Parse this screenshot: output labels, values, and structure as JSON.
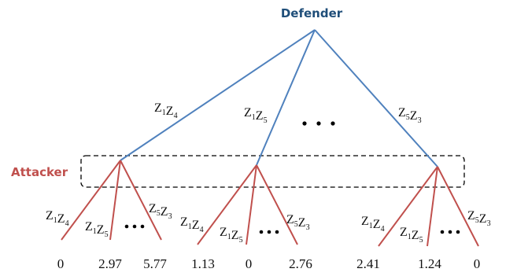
{
  "colors": {
    "defender": "#1F4E79",
    "defender_edges": "#4F81BD",
    "attacker": "#C0504D",
    "attacker_edges": "#C0504D",
    "info_set_border": "#000000"
  },
  "defender": {
    "label": "Defender"
  },
  "attacker": {
    "label": "Attacker"
  },
  "defender_branches": [
    {
      "label": "Z1Z4",
      "parts": [
        [
          "Z",
          "1"
        ],
        [
          "Z",
          "4"
        ]
      ]
    },
    {
      "label": "Z1Z5",
      "parts": [
        [
          "Z",
          "1"
        ],
        [
          "Z",
          "5"
        ]
      ]
    },
    {
      "label": "Z5Z3",
      "parts": [
        [
          "Z",
          "5"
        ],
        [
          "Z",
          "3"
        ]
      ]
    }
  ],
  "subtrees": [
    {
      "branches": [
        {
          "label": "Z1Z4",
          "parts": [
            [
              "Z",
              "1"
            ],
            [
              "Z",
              "4"
            ]
          ]
        },
        {
          "label": "Z1Z5",
          "parts": [
            [
              "Z",
              "1"
            ],
            [
              "Z",
              "5"
            ]
          ]
        },
        {
          "label": "Z5Z3",
          "parts": [
            [
              "Z",
              "5"
            ],
            [
              "Z",
              "3"
            ]
          ]
        }
      ],
      "payoffs": [
        "0",
        "2.97",
        "5.77"
      ]
    },
    {
      "branches": [
        {
          "label": "Z1Z4",
          "parts": [
            [
              "Z",
              "1"
            ],
            [
              "Z",
              "4"
            ]
          ]
        },
        {
          "label": "Z1Z5",
          "parts": [
            [
              "Z",
              "1"
            ],
            [
              "Z",
              "5"
            ]
          ]
        },
        {
          "label": "Z5Z3",
          "parts": [
            [
              "Z",
              "5"
            ],
            [
              "Z",
              "3"
            ]
          ]
        }
      ],
      "payoffs": [
        "1.13",
        "0",
        "2.76"
      ]
    },
    {
      "branches": [
        {
          "label": "Z1Z4",
          "parts": [
            [
              "Z",
              "1"
            ],
            [
              "Z",
              "4"
            ]
          ]
        },
        {
          "label": "Z1Z5",
          "parts": [
            [
              "Z",
              "1"
            ],
            [
              "Z",
              "5"
            ]
          ]
        },
        {
          "label": "Z5Z3",
          "parts": [
            [
              "Z",
              "5"
            ],
            [
              "Z",
              "3"
            ]
          ]
        }
      ],
      "payoffs": [
        "2.41",
        "1.24",
        "0"
      ]
    }
  ]
}
